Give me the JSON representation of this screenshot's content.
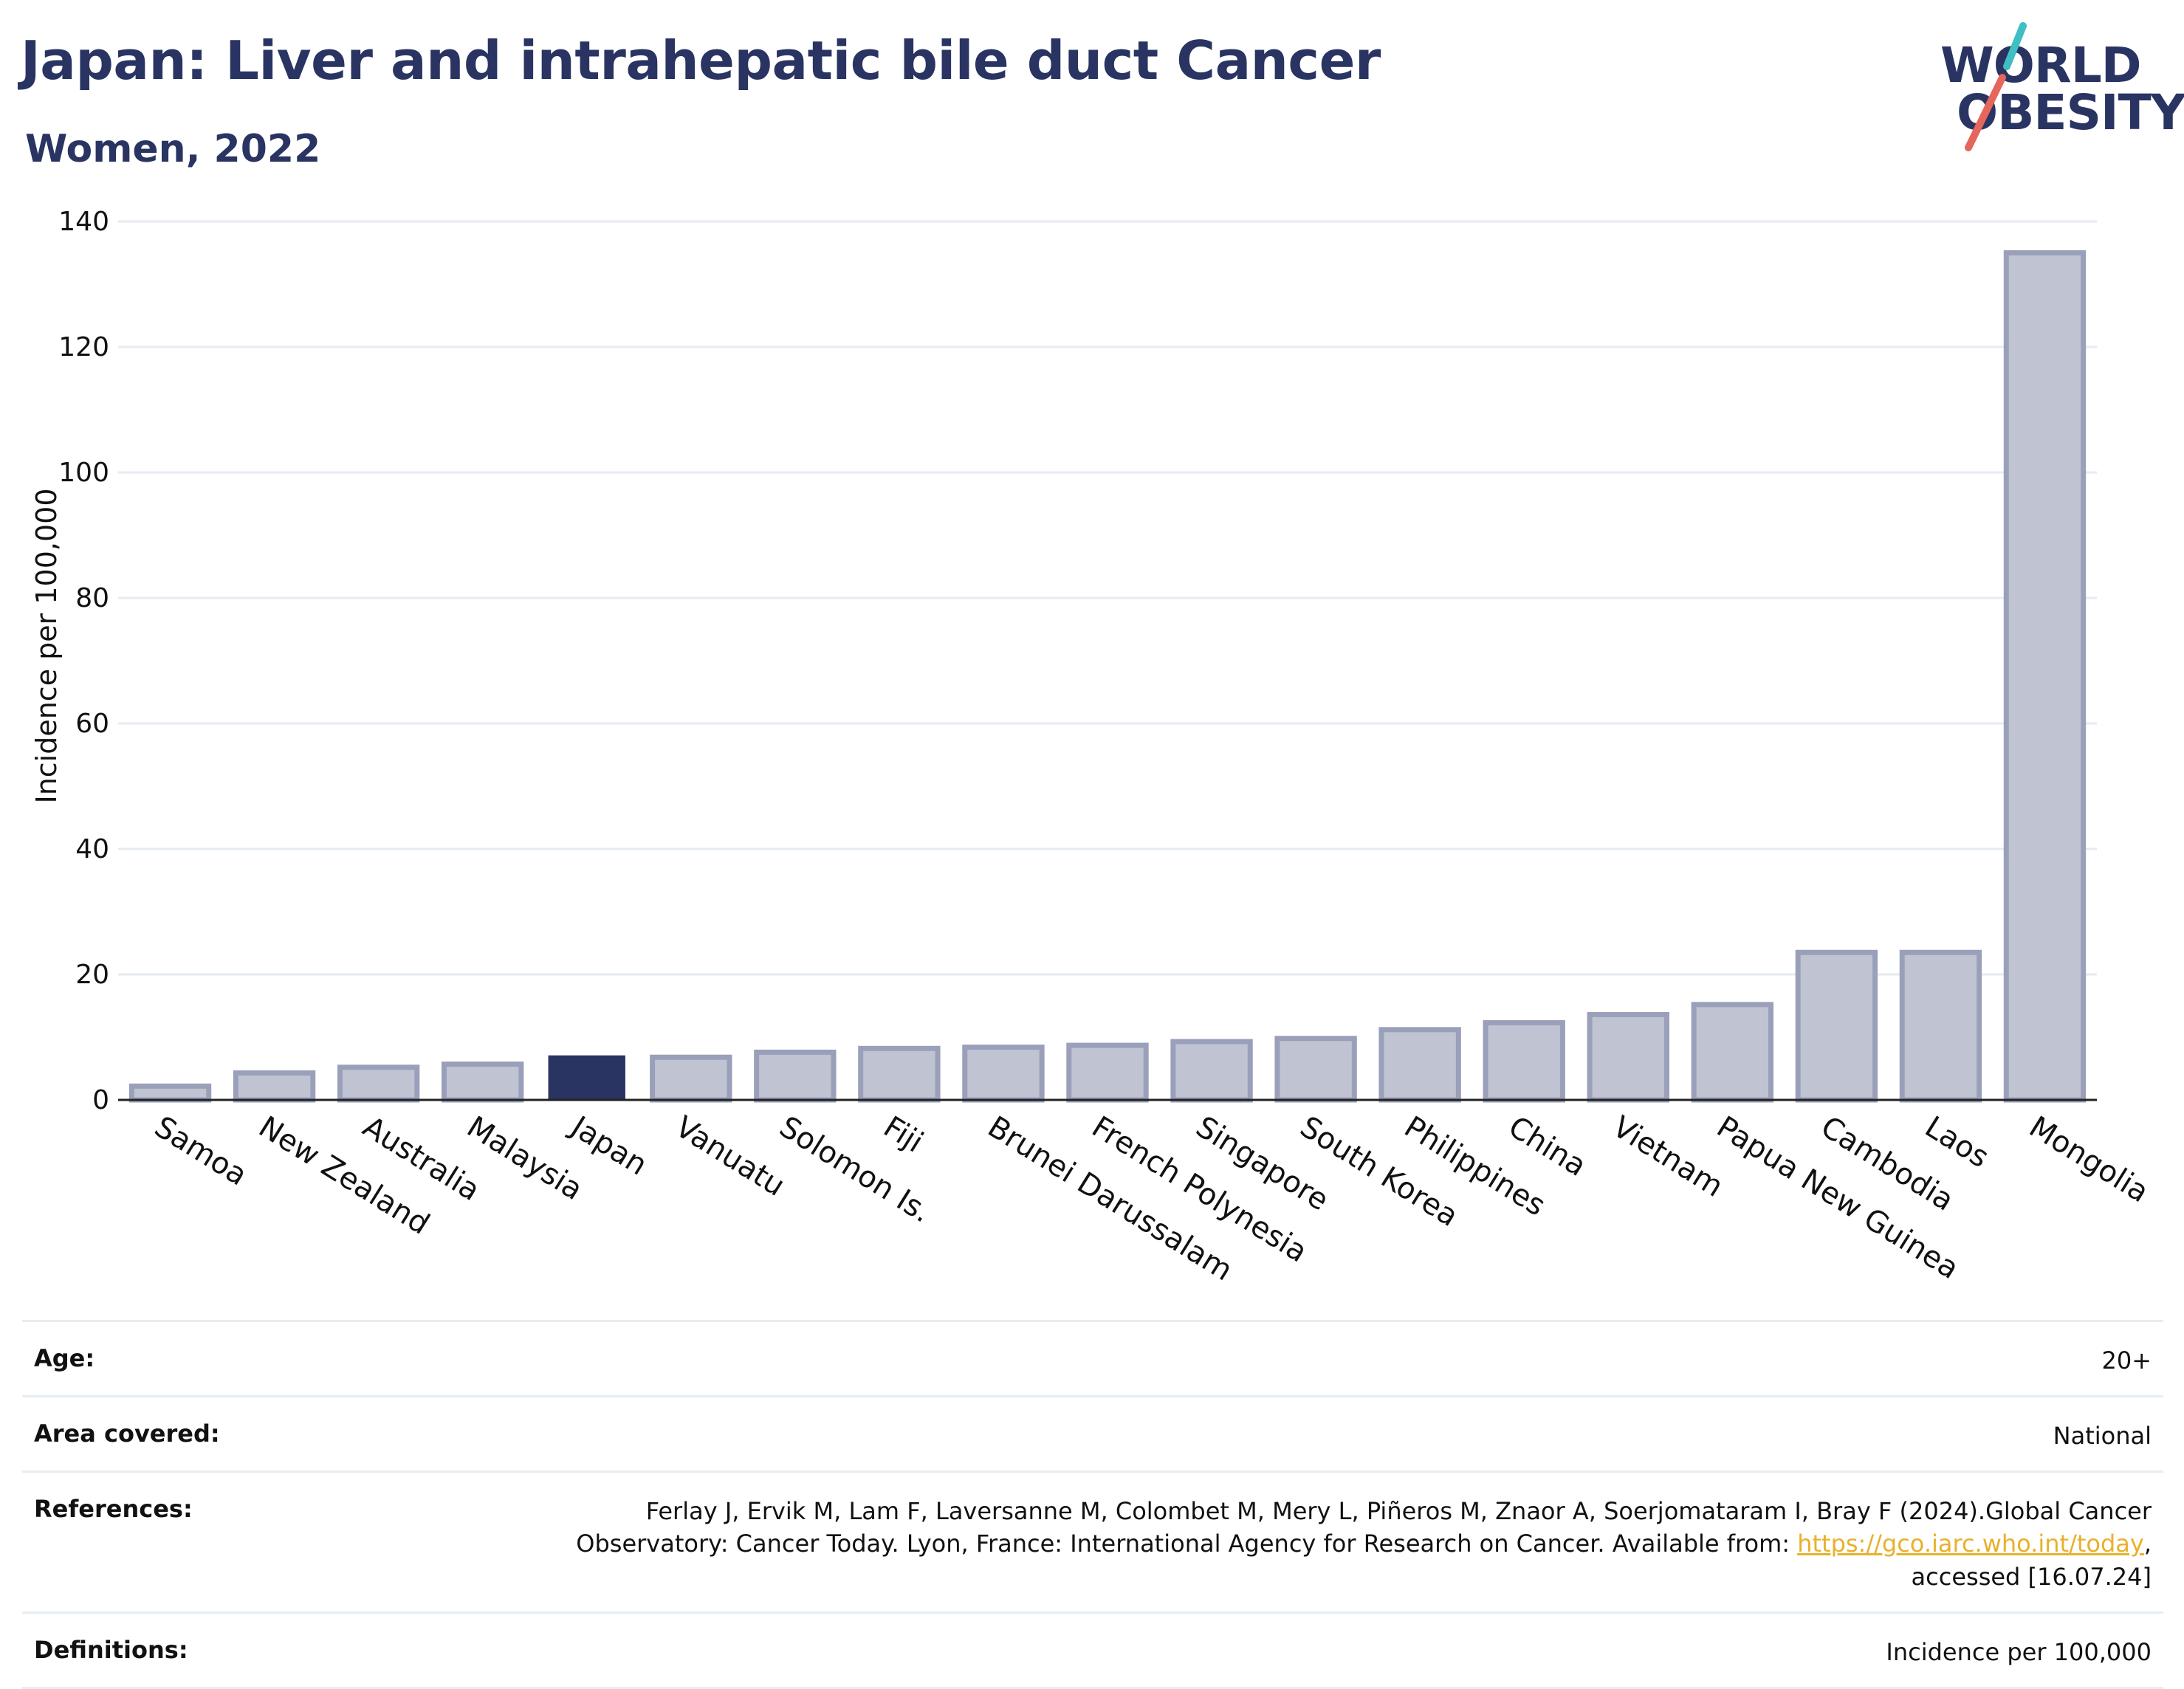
{
  "title": "Japan: Liver and intrahepatic bile duct Cancer",
  "subtitle": "Women, 2022",
  "logo": {
    "line1": "WORLD",
    "line2": "OBESITY"
  },
  "colors": {
    "title": "#2a3462",
    "highlight": "#2a3462",
    "bar_fill": "#c0c3d1",
    "bar_stroke": "#9aa0ba",
    "logo_teal": "#3fbec3",
    "logo_coral": "#e5665a",
    "link": "#e8b12a"
  },
  "chart_data": {
    "type": "bar",
    "ylabel": "Incidence per 100,000",
    "xlabel": "",
    "ylim": [
      0,
      140
    ],
    "yticks": [
      0,
      20,
      40,
      60,
      80,
      100,
      120,
      140
    ],
    "grid": true,
    "highlight_category": "Japan",
    "categories": [
      "Samoa",
      "New Zealand",
      "Australia",
      "Malaysia",
      "Japan",
      "Vanuatu",
      "Solomon Is.",
      "Fiji",
      "Brunei Darussalam",
      "French Polynesia",
      "Singapore",
      "South Korea",
      "Philippines",
      "China",
      "Vietnam",
      "Papua New Guinea",
      "Cambodia",
      "Laos",
      "Mongolia"
    ],
    "values": [
      2.2,
      4.3,
      5.2,
      5.7,
      7.1,
      6.8,
      7.6,
      8.2,
      8.4,
      8.7,
      9.3,
      9.8,
      11.2,
      12.3,
      13.6,
      15.2,
      23.5,
      23.5,
      135.0
    ]
  },
  "meta": [
    {
      "label": "Age:",
      "value": "20+"
    },
    {
      "label": "Area covered:",
      "value": "National"
    },
    {
      "label": "References:",
      "value_line1": "Ferlay J, Ervik M, Lam F, Laversanne M, Colombet M, Mery L, Piñeros M, Znaor A, Soerjomataram I, Bray F (2024).Global Cancer",
      "value_line2_pre": "Observatory: Cancer Today. Lyon, France: International Agency for Research on Cancer. Available from: ",
      "link": "https://gco.iarc.who.int/today",
      "value_line2_post": ",",
      "value_line3": "accessed [16.07.24]"
    },
    {
      "label": "Definitions:",
      "value": "Incidence per 100,000"
    }
  ]
}
